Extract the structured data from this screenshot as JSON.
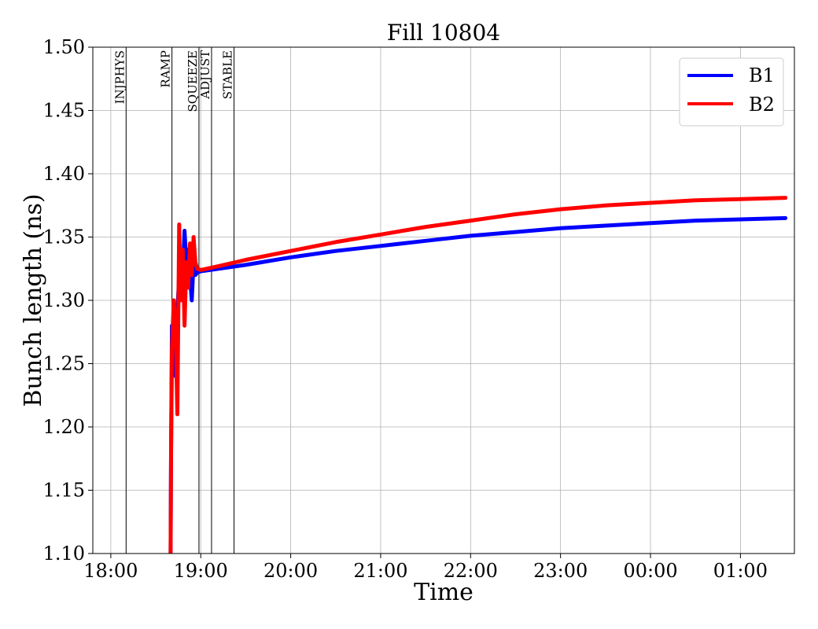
{
  "chart_data": {
    "type": "line",
    "title": "Fill 10804",
    "xlabel": "Time",
    "ylabel": "Bunch length (ns)",
    "x_unit": "hours of day (18.0 = 18:00, 25.0 = 01:00 next day)",
    "xlim": [
      17.8,
      25.6
    ],
    "ylim": [
      1.1,
      1.5
    ],
    "x_ticks": [
      18,
      19,
      20,
      21,
      22,
      23,
      24,
      25
    ],
    "x_tick_labels": [
      "18:00",
      "19:00",
      "20:00",
      "21:00",
      "22:00",
      "23:00",
      "00:00",
      "01:00"
    ],
    "y_ticks": [
      1.1,
      1.15,
      1.2,
      1.25,
      1.3,
      1.35,
      1.4,
      1.45,
      1.5
    ],
    "y_tick_labels": [
      "1.10",
      "1.15",
      "1.20",
      "1.25",
      "1.30",
      "1.35",
      "1.40",
      "1.45",
      "1.50"
    ],
    "grid": true,
    "legend": "top-right",
    "phases": [
      {
        "label": "INJPHYS",
        "x": 18.17
      },
      {
        "label": "RAMP",
        "x": 18.68
      },
      {
        "label": "SQUEEZE",
        "x": 18.98
      },
      {
        "label": "ADJUST",
        "x": 19.12
      },
      {
        "label": "STABLE",
        "x": 19.37
      }
    ],
    "series": [
      {
        "name": "B1",
        "color": "#0000ff",
        "x": [
          18.665,
          18.67,
          18.68,
          18.69,
          18.7,
          18.72,
          18.74,
          18.76,
          18.78,
          18.8,
          18.82,
          18.84,
          18.86,
          18.88,
          18.9,
          18.92,
          18.94,
          18.96,
          19.0,
          19.2,
          19.5,
          20.0,
          20.5,
          21.0,
          21.5,
          22.0,
          22.5,
          23.0,
          23.5,
          24.0,
          24.5,
          25.0,
          25.5
        ],
        "y": [
          1.1,
          1.18,
          1.28,
          1.25,
          1.27,
          1.24,
          1.29,
          1.32,
          1.33,
          1.32,
          1.355,
          1.33,
          1.34,
          1.32,
          1.3,
          1.33,
          1.32,
          1.322,
          1.323,
          1.325,
          1.328,
          1.334,
          1.339,
          1.343,
          1.347,
          1.351,
          1.354,
          1.357,
          1.359,
          1.361,
          1.363,
          1.364,
          1.365
        ]
      },
      {
        "name": "B2",
        "color": "#ff0000",
        "x": [
          18.665,
          18.67,
          18.68,
          18.7,
          18.72,
          18.74,
          18.76,
          18.78,
          18.8,
          18.82,
          18.84,
          18.86,
          18.88,
          18.9,
          18.92,
          18.94,
          18.96,
          19.0,
          19.2,
          19.5,
          20.0,
          20.5,
          21.0,
          21.5,
          22.0,
          22.5,
          23.0,
          23.5,
          24.0,
          24.5,
          25.0,
          25.5
        ],
        "y": [
          1.1,
          1.18,
          1.26,
          1.3,
          1.28,
          1.21,
          1.36,
          1.3,
          1.34,
          1.28,
          1.33,
          1.31,
          1.345,
          1.32,
          1.35,
          1.33,
          1.325,
          1.324,
          1.327,
          1.332,
          1.339,
          1.346,
          1.352,
          1.358,
          1.363,
          1.368,
          1.372,
          1.375,
          1.377,
          1.379,
          1.38,
          1.381
        ]
      }
    ]
  }
}
